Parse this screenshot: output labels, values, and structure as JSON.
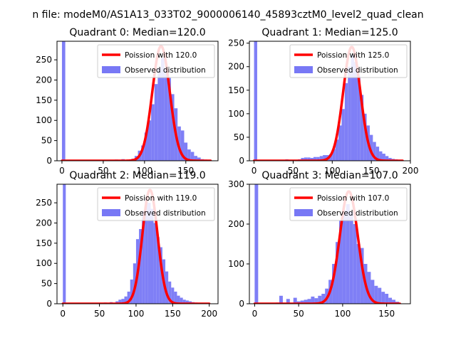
{
  "figure": {
    "suptitle": "n file: modeM0/AS1A13_033T02_9000006140_45893cztM0_level2_quad_clean",
    "colors": {
      "observed": "#7878f5",
      "poisson": "#ff0000"
    }
  },
  "chart_data": [
    {
      "type": "bar",
      "title": "Quadrant 0: Median=120.0",
      "xlabel": "",
      "ylabel": "",
      "xlim": [
        -6,
        189
      ],
      "ylim": [
        0,
        296
      ],
      "xticks": [
        0,
        50,
        100,
        150
      ],
      "yticks": [
        0,
        50,
        100,
        150,
        200,
        250
      ],
      "bin_width": 4,
      "legend": {
        "placement": "top-right",
        "poisson_label": "Poission with 120.0",
        "observed_label": "Observed distribution"
      },
      "series": [
        {
          "name": "Observed distribution",
          "kind": "histogram",
          "x": [
            0,
            36,
            60,
            64,
            72,
            80,
            84,
            88,
            92,
            96,
            100,
            104,
            108,
            112,
            116,
            120,
            124,
            128,
            132,
            136,
            140,
            144,
            148,
            152,
            156,
            160,
            164,
            168,
            172
          ],
          "values": [
            296,
            2,
            2,
            3,
            4,
            3,
            5,
            12,
            25,
            38,
            70,
            100,
            140,
            190,
            230,
            255,
            230,
            205,
            165,
            130,
            85,
            75,
            45,
            28,
            22,
            12,
            8,
            4,
            3
          ]
        },
        {
          "name": "Poission with 120.0",
          "kind": "poisson",
          "mean": 120.0,
          "peak": 284,
          "sigma": 10.5,
          "x_range": [
            0,
            180
          ]
        }
      ]
    },
    {
      "type": "bar",
      "title": "Quadrant 1: Median=125.0",
      "xlabel": "",
      "ylabel": "",
      "xlim": [
        -6,
        200
      ],
      "ylim": [
        0,
        254
      ],
      "xticks": [
        0,
        50,
        100,
        150,
        200
      ],
      "yticks": [
        0,
        50,
        100,
        150,
        200,
        250
      ],
      "bin_width": 4,
      "legend": {
        "placement": "top-right",
        "poisson_label": "Poission with 125.0",
        "observed_label": "Observed distribution"
      },
      "series": [
        {
          "name": "Observed distribution",
          "kind": "histogram",
          "x": [
            0,
            40,
            56,
            60,
            64,
            68,
            72,
            76,
            80,
            84,
            88,
            92,
            96,
            100,
            104,
            108,
            112,
            116,
            120,
            124,
            128,
            132,
            136,
            140,
            144,
            148,
            152,
            156,
            160,
            164,
            168,
            172,
            176,
            180,
            184
          ],
          "values": [
            254,
            3,
            3,
            6,
            7,
            7,
            6,
            8,
            8,
            10,
            12,
            12,
            14,
            25,
            45,
            75,
            110,
            165,
            200,
            225,
            210,
            180,
            140,
            100,
            75,
            55,
            40,
            30,
            20,
            15,
            10,
            6,
            4,
            3,
            2
          ]
        },
        {
          "name": "Poission with 125.0",
          "kind": "poisson",
          "mean": 125.0,
          "peak": 242,
          "sigma": 11.0,
          "x_range": [
            0,
            190
          ]
        }
      ]
    },
    {
      "type": "bar",
      "title": "Quadrant 2: Median=119.0",
      "xlabel": "",
      "ylabel": "",
      "xlim": [
        -8,
        212
      ],
      "ylim": [
        0,
        296
      ],
      "xticks": [
        0,
        50,
        100,
        150,
        200
      ],
      "yticks": [
        0,
        50,
        100,
        150,
        200,
        250
      ],
      "bin_width": 4,
      "legend": {
        "placement": "top-right",
        "poisson_label": "Poission with 119.0",
        "observed_label": "Observed distribution"
      },
      "series": [
        {
          "name": "Observed distribution",
          "kind": "histogram",
          "x": [
            0,
            56,
            64,
            72,
            76,
            80,
            84,
            88,
            92,
            96,
            100,
            104,
            108,
            112,
            116,
            120,
            124,
            128,
            132,
            136,
            140,
            144,
            148,
            152,
            156,
            160,
            164,
            168,
            172,
            176,
            180,
            184
          ],
          "values": [
            296,
            3,
            4,
            6,
            10,
            12,
            18,
            30,
            60,
            100,
            160,
            185,
            230,
            260,
            250,
            235,
            200,
            165,
            140,
            110,
            80,
            55,
            40,
            30,
            20,
            15,
            10,
            8,
            6,
            4,
            3,
            2
          ]
        },
        {
          "name": "Poission with 119.0",
          "kind": "poisson",
          "mean": 119.0,
          "peak": 282,
          "sigma": 10.4,
          "x_range": [
            0,
            200
          ]
        }
      ]
    },
    {
      "type": "bar",
      "title": "Quadrant 3: Median=107.0",
      "xlabel": "",
      "ylabel": "",
      "xlim": [
        -6,
        177
      ],
      "ylim": [
        0,
        300
      ],
      "xticks": [
        0,
        50,
        100,
        150
      ],
      "yticks": [
        0,
        100,
        200,
        300
      ],
      "bin_width": 4,
      "legend": {
        "placement": "top-right",
        "poisson_label": "Poission with 107.0",
        "observed_label": "Observed distribution"
      },
      "series": [
        {
          "name": "Observed distribution",
          "kind": "histogram",
          "x": [
            0,
            24,
            28,
            36,
            44,
            48,
            52,
            56,
            60,
            64,
            68,
            72,
            76,
            80,
            84,
            88,
            92,
            96,
            100,
            104,
            108,
            112,
            116,
            120,
            124,
            128,
            132,
            136,
            140,
            144,
            148,
            152,
            156,
            160
          ],
          "values": [
            300,
            3,
            20,
            12,
            15,
            6,
            8,
            10,
            12,
            18,
            14,
            20,
            25,
            38,
            60,
            100,
            155,
            210,
            235,
            250,
            230,
            200,
            150,
            140,
            100,
            80,
            60,
            45,
            40,
            30,
            25,
            15,
            10,
            5
          ]
        },
        {
          "name": "Poission with 107.0",
          "kind": "poisson",
          "mean": 107.0,
          "peak": 282,
          "sigma": 10.2,
          "x_range": [
            0,
            165
          ]
        }
      ]
    }
  ]
}
